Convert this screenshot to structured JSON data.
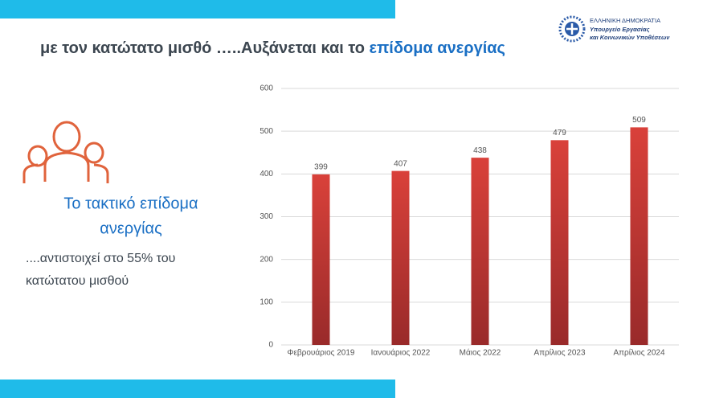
{
  "slide": {
    "title_lead": "με τον κατώτατο μισθό …..Αυξάνεται και το",
    "title_highlight": "επίδομα ανεργίας",
    "logo_lines": [
      "ΕΛΛΗΝΙΚΗ ΔΗΜΟΚΡΑΤΙΑ",
      "Υπουργείο Εργασίας",
      "και Κοινωνικών Υποθέσεων"
    ],
    "heading_lines": [
      "Το τακτικό επίδομα",
      "ανεργίας"
    ],
    "note_lines": [
      "....αντιστοιχεί στο 55% του",
      "κατώτατου μισθού"
    ]
  },
  "chart_data": {
    "type": "bar",
    "categories": [
      "Φεβρουάριος 2019",
      "Ιανουάριος 2022",
      "Μάιος 2022",
      "Απρίλιος 2023",
      "Απρίλιος 2024"
    ],
    "values": [
      399,
      407,
      438,
      479,
      509
    ],
    "color": "#d43d36",
    "ylim": [
      0,
      600
    ],
    "yticks": [
      0,
      100,
      200,
      300,
      400,
      500,
      600
    ],
    "grid": true
  }
}
